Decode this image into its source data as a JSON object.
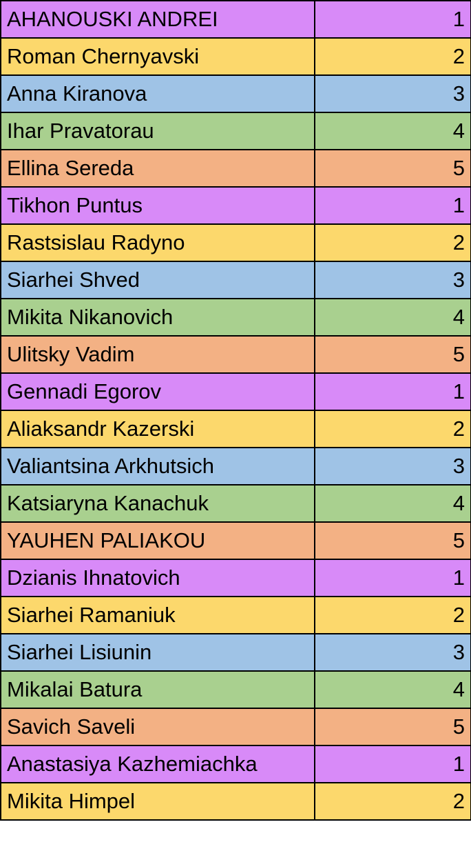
{
  "group_colors": {
    "1": "#D88AF8",
    "2": "#FCD86C",
    "3": "#9FC3E6",
    "4": "#A9D08F",
    "5": "#F3B184"
  },
  "rows": [
    {
      "name": "AHANOUSKI ANDREI",
      "number": "1"
    },
    {
      "name": "Roman Chernyavski",
      "number": "2"
    },
    {
      "name": "Anna Kiranova",
      "number": "3"
    },
    {
      "name": "Ihar Pravatorau",
      "number": "4"
    },
    {
      "name": "Ellina Sereda",
      "number": "5"
    },
    {
      "name": "Tikhon Puntus",
      "number": "1"
    },
    {
      "name": "Rastsislau Radyno",
      "number": "2"
    },
    {
      "name": "Siarhei Shved",
      "number": "3"
    },
    {
      "name": "Mikita Nikanovich",
      "number": "4"
    },
    {
      "name": "Ulitsky Vadim",
      "number": "5"
    },
    {
      "name": "Gennadi Egorov",
      "number": "1"
    },
    {
      "name": "Aliaksandr Kazerski",
      "number": "2"
    },
    {
      "name": "Valiantsina Arkhutsich",
      "number": "3"
    },
    {
      "name": "Katsiaryna Kanachuk",
      "number": "4"
    },
    {
      "name": "YAUHEN PALIAKOU",
      "number": "5"
    },
    {
      "name": "Dzianis Ihnatovich",
      "number": "1"
    },
    {
      "name": "Siarhei Ramaniuk",
      "number": "2"
    },
    {
      "name": "Siarhei Lisiunin",
      "number": "3"
    },
    {
      "name": "Mikalai Batura",
      "number": "4"
    },
    {
      "name": "Savich Saveli",
      "number": "5"
    },
    {
      "name": "Anastasiya Kazhemiachka",
      "number": "1"
    },
    {
      "name": "Mikita Himpel",
      "number": "2"
    }
  ]
}
